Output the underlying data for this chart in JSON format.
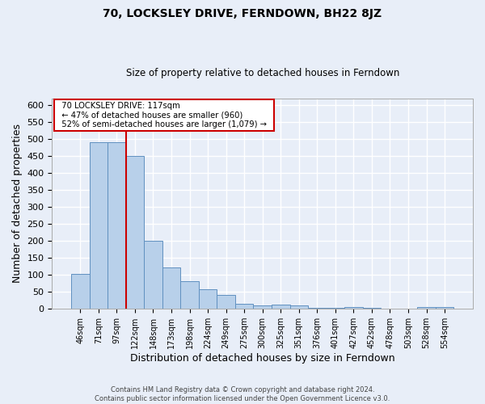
{
  "title": "70, LOCKSLEY DRIVE, FERNDOWN, BH22 8JZ",
  "subtitle": "Size of property relative to detached houses in Ferndown",
  "xlabel": "Distribution of detached houses by size in Ferndown",
  "ylabel": "Number of detached properties",
  "annotation_line1": "  70 LOCKSLEY DRIVE: 117sqm  ",
  "annotation_line2": "  ← 47% of detached houses are smaller (960)  ",
  "annotation_line3": "  52% of semi-detached houses are larger (1,079) →  ",
  "categories": [
    "46sqm",
    "71sqm",
    "97sqm",
    "122sqm",
    "148sqm",
    "173sqm",
    "198sqm",
    "224sqm",
    "249sqm",
    "275sqm",
    "300sqm",
    "325sqm",
    "351sqm",
    "376sqm",
    "401sqm",
    "427sqm",
    "452sqm",
    "478sqm",
    "503sqm",
    "528sqm",
    "554sqm"
  ],
  "values": [
    103,
    490,
    490,
    450,
    200,
    123,
    82,
    57,
    40,
    16,
    10,
    12,
    10,
    2,
    2,
    5,
    2,
    0,
    0,
    6,
    6
  ],
  "bar_color": "#b8d0ea",
  "bar_edge_color": "#6090c0",
  "vline_x_index": 2.5,
  "vline_color": "#cc0000",
  "annotation_box_color": "#ffffff",
  "annotation_box_edge": "#cc0000",
  "background_color": "#e8eef8",
  "plot_bg_color": "#e8eef8",
  "grid_color": "#ffffff",
  "footer_line1": "Contains HM Land Registry data © Crown copyright and database right 2024.",
  "footer_line2": "Contains public sector information licensed under the Open Government Licence v3.0.",
  "ylim": [
    0,
    620
  ],
  "yticks": [
    0,
    50,
    100,
    150,
    200,
    250,
    300,
    350,
    400,
    450,
    500,
    550,
    600
  ]
}
